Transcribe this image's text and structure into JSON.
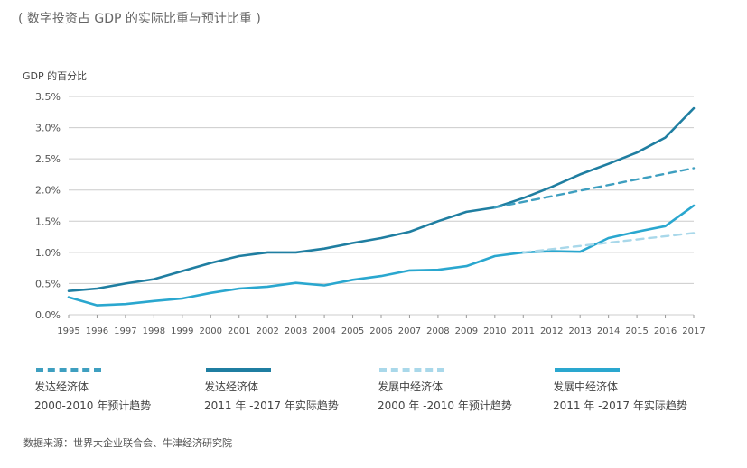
{
  "title": "( 数字投资占 GDP 的实际比重与预计比重 )",
  "source": "数据来源：世界大企业联合会、牛津经济研究院",
  "colors": {
    "developed": "#1f7ea1",
    "developing": "#2aa7cf",
    "developed_proj": "#3e9fc0",
    "developing_proj": "#a9d8ea",
    "grid": "#cccccc"
  },
  "legend": [
    {
      "line1": "发达经济体",
      "line2": "2000-2010 年预计趋势",
      "style": "dashed",
      "color": "#3e9fc0"
    },
    {
      "line1": "发达经济体",
      "line2": "2011 年 -2017 年实际趋势",
      "style": "solid",
      "color": "#1f7ea1"
    },
    {
      "line1": "发展中经济体",
      "line2": "2000 年 -2010 年预计趋势",
      "style": "dashed",
      "color": "#a9d8ea"
    },
    {
      "line1": "发展中经济体",
      "line2": "2011 年 -2017 年实际趋势",
      "style": "solid",
      "color": "#2aa7cf"
    }
  ],
  "chart_data": {
    "type": "line",
    "title": "( 数字投资占 GDP 的实际比重与预计比重 )",
    "ylabel": "GDP 的百分比",
    "xlabel": "",
    "x": [
      "1995",
      "1996",
      "1997",
      "1998",
      "1999",
      "2000",
      "2001",
      "2002",
      "2003",
      "2004",
      "2005",
      "2006",
      "2007",
      "2008",
      "2009",
      "2010",
      "2011",
      "2012",
      "2013",
      "2014",
      "2015",
      "2016",
      "2017"
    ],
    "ylim": [
      0,
      3.5
    ],
    "yticks": [
      "0.0%",
      "0.5%",
      "1.0%",
      "1.5%",
      "2.0%",
      "2.5%",
      "3.0%",
      "3.5%"
    ],
    "grid": true,
    "series": [
      {
        "name": "发达经济体 2011 年 -2017 年实际趋势",
        "style": "solid",
        "values": [
          0.38,
          0.42,
          0.5,
          0.57,
          0.7,
          0.83,
          0.94,
          1.0,
          1.0,
          1.06,
          1.15,
          1.23,
          1.33,
          1.5,
          1.65,
          1.72,
          1.87,
          2.05,
          2.25,
          2.42,
          2.6,
          2.84,
          3.31
        ]
      },
      {
        "name": "发展中经济体 2011 年 -2017 年实际趋势",
        "style": "solid",
        "values": [
          0.28,
          0.15,
          0.17,
          0.22,
          0.26,
          0.35,
          0.42,
          0.45,
          0.51,
          0.47,
          0.56,
          0.62,
          0.71,
          0.72,
          0.78,
          0.94,
          1.0,
          1.02,
          1.01,
          1.23,
          1.33,
          1.42,
          1.75
        ]
      },
      {
        "name": "发达经济体 2000-2010 年预计趋势",
        "style": "dashed",
        "x": [
          "2010",
          "2017"
        ],
        "values": [
          1.72,
          2.35
        ]
      },
      {
        "name": "发展中经济体 2000 年 -2010 年预计趋势",
        "style": "dashed",
        "x": [
          "2011",
          "2017"
        ],
        "values": [
          1.0,
          1.31
        ]
      }
    ]
  }
}
